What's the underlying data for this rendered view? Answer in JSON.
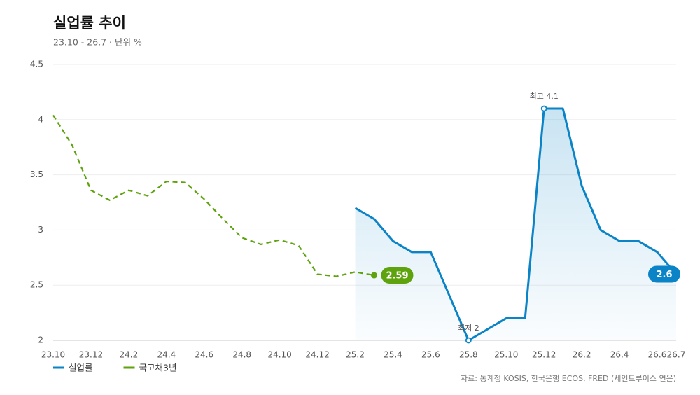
{
  "chart_data": {
    "type": "line",
    "title": "실업률 추이",
    "subtitle": "23.10 - 26.7 · 단위 %",
    "source": "자료: 통계청 KOSIS, 한국은행 ECOS, FRED (세인트루이스 연은)",
    "categories": [
      "23.10",
      null,
      "23.12",
      null,
      "24.2",
      null,
      "24.4",
      null,
      "24.6",
      null,
      "24.8",
      null,
      "24.10",
      null,
      "24.12",
      null,
      "25.2",
      null,
      "25.4",
      null,
      "25.6",
      null,
      "25.8",
      null,
      "25.10",
      null,
      "25.12",
      null,
      "26.2",
      null,
      "26.4",
      null,
      "26.6",
      "26.7"
    ],
    "series": [
      {
        "name": "실업률",
        "color": "#0a84c6",
        "dashed": false,
        "area": true,
        "values": [
          null,
          null,
          null,
          null,
          null,
          null,
          null,
          null,
          null,
          null,
          null,
          null,
          null,
          null,
          null,
          null,
          3.2,
          3.1,
          2.9,
          2.8,
          2.8,
          2.4,
          2.0,
          2.1,
          2.2,
          2.2,
          4.1,
          4.1,
          3.4,
          3.0,
          2.9,
          2.9,
          2.8,
          2.6
        ]
      },
      {
        "name": "국고채3년",
        "color": "#5ea30e",
        "dashed": true,
        "area": false,
        "values": [
          4.04,
          3.77,
          3.36,
          3.27,
          3.36,
          3.31,
          3.44,
          3.43,
          3.28,
          3.1,
          2.93,
          2.87,
          2.91,
          2.86,
          2.6,
          2.58,
          2.62,
          2.59,
          null,
          null,
          null,
          null,
          null,
          null,
          null,
          null,
          null,
          null,
          null,
          null,
          null,
          null,
          null,
          null
        ]
      }
    ],
    "annotations": {
      "max": "최고 4.1",
      "min": "최저 2"
    },
    "ylim": [
      2,
      4.5
    ],
    "yticks": [
      2,
      2.5,
      3,
      3.5,
      4,
      4.5
    ],
    "grid": true,
    "legend": "bottom-left"
  }
}
